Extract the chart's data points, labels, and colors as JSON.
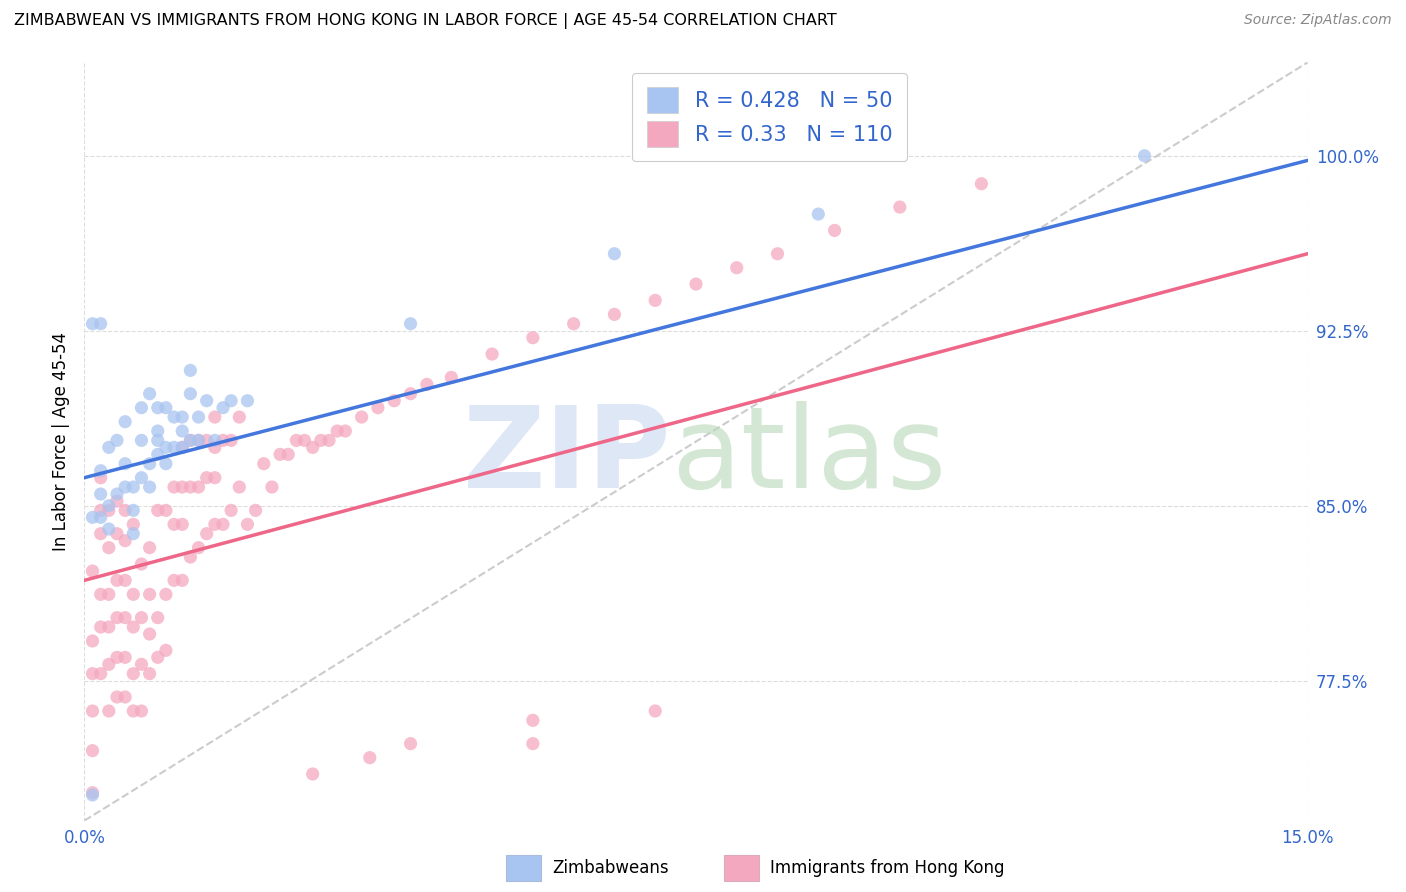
{
  "title": "ZIMBABWEAN VS IMMIGRANTS FROM HONG KONG IN LABOR FORCE | AGE 45-54 CORRELATION CHART",
  "source": "Source: ZipAtlas.com",
  "ylabel": "In Labor Force | Age 45-54",
  "xmin": 0.0,
  "xmax": 0.15,
  "ymin": 0.715,
  "ymax": 1.04,
  "yticks": [
    0.775,
    0.85,
    0.925,
    1.0
  ],
  "ytick_labels": [
    "77.5%",
    "85.0%",
    "92.5%",
    "100.0%"
  ],
  "xticks": [
    0.0,
    0.15
  ],
  "xtick_labels": [
    "0.0%",
    "15.0%"
  ],
  "blue_R": 0.428,
  "blue_N": 50,
  "pink_R": 0.33,
  "pink_N": 110,
  "blue_color": "#a8c4f0",
  "pink_color": "#f4a8c0",
  "blue_line_color": "#4477dd",
  "pink_line_color": "#ee6688",
  "dashed_line_color": "#cccccc",
  "blue_scatter_x": [
    0.001,
    0.001,
    0.001,
    0.002,
    0.002,
    0.002,
    0.002,
    0.003,
    0.003,
    0.003,
    0.004,
    0.004,
    0.005,
    0.005,
    0.005,
    0.006,
    0.006,
    0.006,
    0.007,
    0.007,
    0.007,
    0.008,
    0.008,
    0.008,
    0.009,
    0.009,
    0.009,
    0.009,
    0.01,
    0.01,
    0.01,
    0.011,
    0.011,
    0.012,
    0.012,
    0.012,
    0.013,
    0.013,
    0.013,
    0.014,
    0.014,
    0.015,
    0.016,
    0.017,
    0.018,
    0.02,
    0.04,
    0.065,
    0.09,
    0.13
  ],
  "blue_scatter_y": [
    0.726,
    0.845,
    0.928,
    0.845,
    0.855,
    0.865,
    0.928,
    0.84,
    0.85,
    0.875,
    0.855,
    0.878,
    0.858,
    0.868,
    0.886,
    0.838,
    0.848,
    0.858,
    0.862,
    0.878,
    0.892,
    0.858,
    0.868,
    0.898,
    0.872,
    0.878,
    0.882,
    0.892,
    0.868,
    0.875,
    0.892,
    0.875,
    0.888,
    0.875,
    0.882,
    0.888,
    0.878,
    0.898,
    0.908,
    0.878,
    0.888,
    0.895,
    0.878,
    0.892,
    0.895,
    0.895,
    0.928,
    0.958,
    0.975,
    1.0
  ],
  "pink_scatter_x": [
    0.001,
    0.001,
    0.001,
    0.001,
    0.001,
    0.001,
    0.002,
    0.002,
    0.002,
    0.002,
    0.002,
    0.002,
    0.003,
    0.003,
    0.003,
    0.003,
    0.003,
    0.003,
    0.004,
    0.004,
    0.004,
    0.004,
    0.004,
    0.004,
    0.005,
    0.005,
    0.005,
    0.005,
    0.005,
    0.005,
    0.006,
    0.006,
    0.006,
    0.006,
    0.006,
    0.007,
    0.007,
    0.007,
    0.007,
    0.008,
    0.008,
    0.008,
    0.008,
    0.009,
    0.009,
    0.009,
    0.01,
    0.01,
    0.01,
    0.011,
    0.011,
    0.011,
    0.012,
    0.012,
    0.012,
    0.012,
    0.013,
    0.013,
    0.013,
    0.014,
    0.014,
    0.014,
    0.015,
    0.015,
    0.015,
    0.016,
    0.016,
    0.016,
    0.016,
    0.017,
    0.017,
    0.018,
    0.018,
    0.019,
    0.019,
    0.02,
    0.021,
    0.022,
    0.023,
    0.024,
    0.025,
    0.026,
    0.027,
    0.028,
    0.029,
    0.03,
    0.031,
    0.032,
    0.034,
    0.036,
    0.038,
    0.04,
    0.042,
    0.045,
    0.05,
    0.055,
    0.06,
    0.065,
    0.07,
    0.075,
    0.08,
    0.085,
    0.092,
    0.1,
    0.11,
    0.055,
    0.028,
    0.035,
    0.04,
    0.055,
    0.07
  ],
  "pink_scatter_y": [
    0.727,
    0.745,
    0.762,
    0.778,
    0.792,
    0.822,
    0.778,
    0.798,
    0.812,
    0.838,
    0.848,
    0.862,
    0.762,
    0.782,
    0.798,
    0.812,
    0.832,
    0.848,
    0.768,
    0.785,
    0.802,
    0.818,
    0.838,
    0.852,
    0.768,
    0.785,
    0.802,
    0.818,
    0.835,
    0.848,
    0.762,
    0.778,
    0.798,
    0.812,
    0.842,
    0.762,
    0.782,
    0.802,
    0.825,
    0.778,
    0.795,
    0.812,
    0.832,
    0.785,
    0.802,
    0.848,
    0.788,
    0.812,
    0.848,
    0.818,
    0.842,
    0.858,
    0.818,
    0.842,
    0.858,
    0.875,
    0.828,
    0.858,
    0.878,
    0.832,
    0.858,
    0.878,
    0.838,
    0.862,
    0.878,
    0.842,
    0.862,
    0.875,
    0.888,
    0.842,
    0.878,
    0.848,
    0.878,
    0.858,
    0.888,
    0.842,
    0.848,
    0.868,
    0.858,
    0.872,
    0.872,
    0.878,
    0.878,
    0.875,
    0.878,
    0.878,
    0.882,
    0.882,
    0.888,
    0.892,
    0.895,
    0.898,
    0.902,
    0.905,
    0.915,
    0.922,
    0.928,
    0.932,
    0.938,
    0.945,
    0.952,
    0.958,
    0.968,
    0.978,
    0.988,
    0.748,
    0.735,
    0.742,
    0.748,
    0.758,
    0.762
  ],
  "blue_line_x": [
    0.0,
    0.15
  ],
  "blue_line_y": [
    0.862,
    0.998
  ],
  "pink_line_x": [
    0.0,
    0.15
  ],
  "pink_line_y": [
    0.818,
    0.958
  ],
  "dashed_line_x": [
    0.0,
    0.15
  ],
  "dashed_line_y": [
    0.715,
    1.04
  ]
}
